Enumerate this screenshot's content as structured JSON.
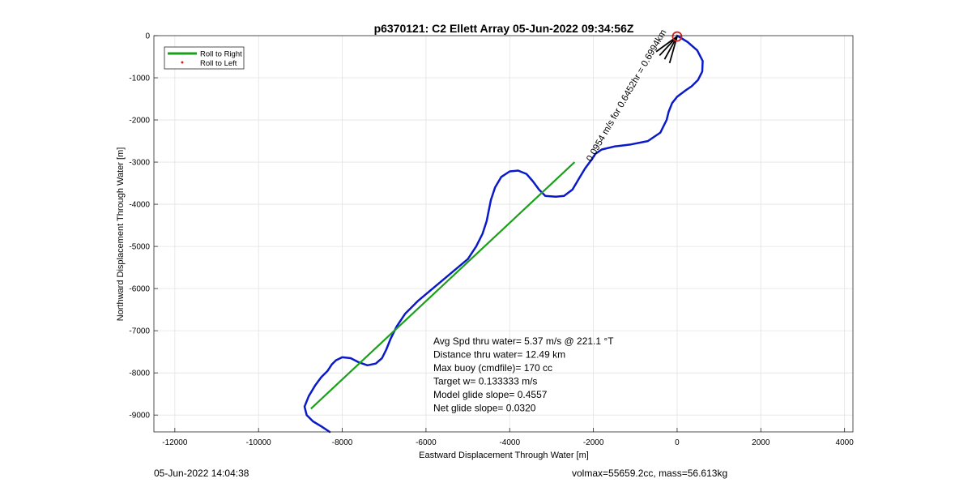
{
  "chart_data": {
    "type": "line",
    "title": "p6370121: C2 Ellett Array 05-Jun-2022 09:34:56Z",
    "xlabel": "Eastward Displacement Through Water [m]",
    "ylabel": "Northward Displacement Through Water [m]",
    "xlim": [
      -12500,
      4200
    ],
    "ylim": [
      -9400,
      0
    ],
    "xticks": [
      -12000,
      -10000,
      -8000,
      -6000,
      -4000,
      -2000,
      0,
      2000,
      4000
    ],
    "yticks": [
      0,
      -1000,
      -2000,
      -3000,
      -4000,
      -5000,
      -6000,
      -7000,
      -8000,
      -9000
    ],
    "xtick_labels": [
      "-12000",
      "-10000",
      "-8000",
      "-6000",
      "-4000",
      "-2000",
      "0",
      "2000",
      "4000"
    ],
    "ytick_labels": [
      "0",
      "-1000",
      "-2000",
      "-3000",
      "-4000",
      "-5000",
      "-6000",
      "-7000",
      "-8000",
      "-9000"
    ],
    "grid": true,
    "legend": {
      "placement": "top-left",
      "entries": [
        {
          "label": "Roll to Right",
          "color": "#1aa01a",
          "style": "line"
        },
        {
          "label": "Roll to Left",
          "color": "#d62020",
          "style": "dot"
        }
      ]
    },
    "colors": {
      "track": "#0a1ac8",
      "straight": "#1aa01a",
      "current": "#000000",
      "marker": "#d62020"
    },
    "series": [
      {
        "role": "glider-track",
        "x": [
          0,
          250,
          480,
          610,
          600,
          500,
          350,
          200,
          0,
          -120,
          -200,
          -250,
          -400,
          -700,
          -1100,
          -1500,
          -1800,
          -1950,
          -2050,
          -2200,
          -2350,
          -2500,
          -2700,
          -2900,
          -3150,
          -3300,
          -3450,
          -3600,
          -3800,
          -4000,
          -4200,
          -4350,
          -4450,
          -4500,
          -4550,
          -4650,
          -4800,
          -5000,
          -5300,
          -5600,
          -5900,
          -6200,
          -6500,
          -6700,
          -6850,
          -6950,
          -7050,
          -7200,
          -7400,
          -7600,
          -7800,
          -8000,
          -8150,
          -8250,
          -8350,
          -8500,
          -8650,
          -8800,
          -8900,
          -8850,
          -8700,
          -8500,
          -8300
        ],
        "y": [
          0,
          -150,
          -350,
          -600,
          -850,
          -1050,
          -1200,
          -1300,
          -1450,
          -1600,
          -1800,
          -2000,
          -2300,
          -2500,
          -2580,
          -2630,
          -2700,
          -2800,
          -2950,
          -3150,
          -3400,
          -3650,
          -3800,
          -3820,
          -3800,
          -3650,
          -3450,
          -3280,
          -3200,
          -3220,
          -3350,
          -3600,
          -3900,
          -4150,
          -4400,
          -4700,
          -5000,
          -5300,
          -5550,
          -5800,
          -6050,
          -6300,
          -6600,
          -6900,
          -7200,
          -7450,
          -7650,
          -7780,
          -7820,
          -7750,
          -7650,
          -7630,
          -7700,
          -7800,
          -7950,
          -8100,
          -8300,
          -8550,
          -8800,
          -9000,
          -9150,
          -9270,
          -9400
        ]
      },
      {
        "role": "net-displacement",
        "x": [
          -8750,
          -2450
        ],
        "y": [
          -8850,
          -3000
        ]
      }
    ],
    "current_vectors": [
      {
        "x": [
          0,
          -500
        ],
        "y": [
          -20,
          -380
        ]
      },
      {
        "x": [
          0,
          -420
        ],
        "y": [
          -20,
          -470
        ]
      },
      {
        "x": [
          0,
          -300
        ],
        "y": [
          -20,
          -560
        ]
      },
      {
        "x": [
          0,
          -180
        ],
        "y": [
          -20,
          -650
        ]
      }
    ],
    "start_marker": {
      "x": 0,
      "y": -20
    },
    "annotations": [
      {
        "id": "depth-average-current",
        "text": "0.0954 m/s for 0.6452hr = 0.6994km",
        "x": -2050,
        "y": -3000,
        "rotation": -60
      },
      {
        "id": "stats-speed",
        "text": "Avg Spd thru water=  5.37 m/s @ 221.1 °T"
      },
      {
        "id": "stats-distance",
        "text": "Distance thru water= 12.49 km"
      },
      {
        "id": "stats-buoy",
        "text": "Max buoy (cmdfile)= 170 cc"
      },
      {
        "id": "stats-target",
        "text": "Target w= 0.133333 m/s"
      },
      {
        "id": "stats-model-glide",
        "text": "Model glide slope= 0.4557"
      },
      {
        "id": "stats-net-glide",
        "text": "Net glide slope= 0.0320"
      }
    ]
  },
  "footer": {
    "timestamp": "05-Jun-2022 14:04:38",
    "vehicle": "volmax=55659.2cc, mass=56.613kg"
  }
}
